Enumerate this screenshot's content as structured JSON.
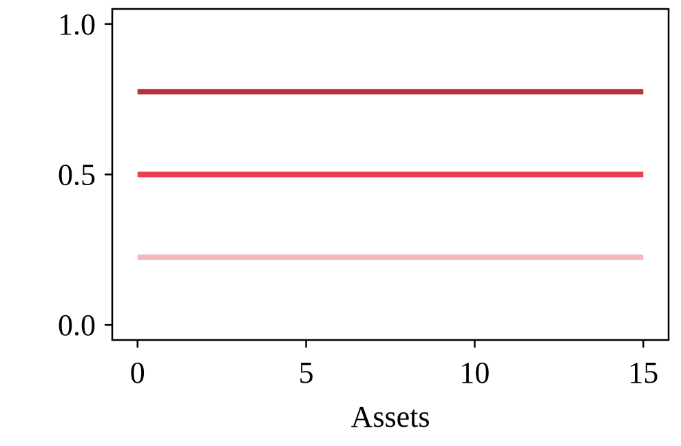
{
  "chart_data": {
    "type": "line",
    "title": "",
    "xlabel": "Assets",
    "ylabel": "",
    "xlim": [
      -0.75,
      15.75
    ],
    "ylim": [
      -0.05,
      1.05
    ],
    "x_ticks": [
      0,
      5,
      10,
      15
    ],
    "x_tick_labels": [
      "0",
      "5",
      "10",
      "15"
    ],
    "y_ticks": [
      0.0,
      0.5,
      1.0
    ],
    "y_tick_labels": [
      "0.0",
      "0.5",
      "1.0"
    ],
    "grid": false,
    "legend": "none",
    "x": [
      0,
      15
    ],
    "series": [
      {
        "values": [
          0.775,
          0.775
        ],
        "color": "#b8323c"
      },
      {
        "values": [
          0.5,
          0.5
        ],
        "color": "#e8404e"
      },
      {
        "values": [
          0.225,
          0.225
        ],
        "color": "#f7b6b8"
      }
    ]
  }
}
